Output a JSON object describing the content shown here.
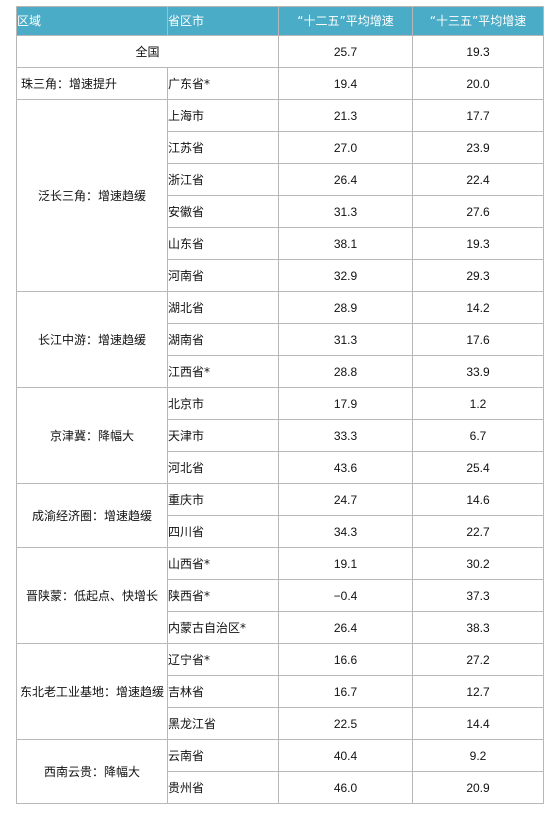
{
  "headers": {
    "region": "区域",
    "province": "省区市",
    "g12": "“十二五”平均增速",
    "g13": "“十三五”平均增速"
  },
  "national": {
    "label": "全国",
    "g12": "25.7",
    "g13": "19.3"
  },
  "groups": [
    {
      "region": "珠三角：增速提升",
      "rows": [
        {
          "name": "广东省*",
          "g12": "19.4",
          "g13": "20.0"
        }
      ]
    },
    {
      "region": "泛长三角：增速趋缓",
      "rows": [
        {
          "name": "上海市",
          "g12": "21.3",
          "g13": "17.7"
        },
        {
          "name": "江苏省",
          "g12": "27.0",
          "g13": "23.9"
        },
        {
          "name": "浙江省",
          "g12": "26.4",
          "g13": "22.4"
        },
        {
          "name": "安徽省",
          "g12": "31.3",
          "g13": "27.6"
        },
        {
          "name": "山东省",
          "g12": "38.1",
          "g13": "19.3"
        },
        {
          "name": "河南省",
          "g12": "32.9",
          "g13": "29.3"
        }
      ]
    },
    {
      "region": "长江中游：增速趋缓",
      "rows": [
        {
          "name": "湖北省",
          "g12": "28.9",
          "g13": "14.2"
        },
        {
          "name": "湖南省",
          "g12": "31.3",
          "g13": "17.6"
        },
        {
          "name": "江西省*",
          "g12": "28.8",
          "g13": "33.9"
        }
      ]
    },
    {
      "region": "京津冀：降幅大",
      "rows": [
        {
          "name": "北京市",
          "g12": "17.9",
          "g13": "1.2"
        },
        {
          "name": "天津市",
          "g12": "33.3",
          "g13": "6.7"
        },
        {
          "name": "河北省",
          "g12": "43.6",
          "g13": "25.4"
        }
      ]
    },
    {
      "region": "成渝经济圈：增速趋缓",
      "rows": [
        {
          "name": "重庆市",
          "g12": "24.7",
          "g13": "14.6"
        },
        {
          "name": "四川省",
          "g12": "34.3",
          "g13": "22.7"
        }
      ]
    },
    {
      "region": "晋陕蒙：低起点、快增长",
      "rows": [
        {
          "name": "山西省*",
          "g12": "19.1",
          "g13": "30.2"
        },
        {
          "name": "陕西省*",
          "g12": "−0.4",
          "g13": "37.3"
        },
        {
          "name": "内蒙古自治区*",
          "g12": "26.4",
          "g13": "38.3"
        }
      ]
    },
    {
      "region": "东北老工业基地：增速趋缓",
      "rows": [
        {
          "name": "辽宁省*",
          "g12": "16.6",
          "g13": "27.2"
        },
        {
          "name": "吉林省",
          "g12": "16.7",
          "g13": "12.7"
        },
        {
          "name": "黑龙江省",
          "g12": "22.5",
          "g13": "14.4"
        }
      ]
    },
    {
      "region": "西南云贵：降幅大",
      "rows": [
        {
          "name": "云南省",
          "g12": "40.4",
          "g13": "9.2"
        },
        {
          "name": "贵州省",
          "g12": "46.0",
          "g13": "20.9"
        }
      ]
    }
  ]
}
